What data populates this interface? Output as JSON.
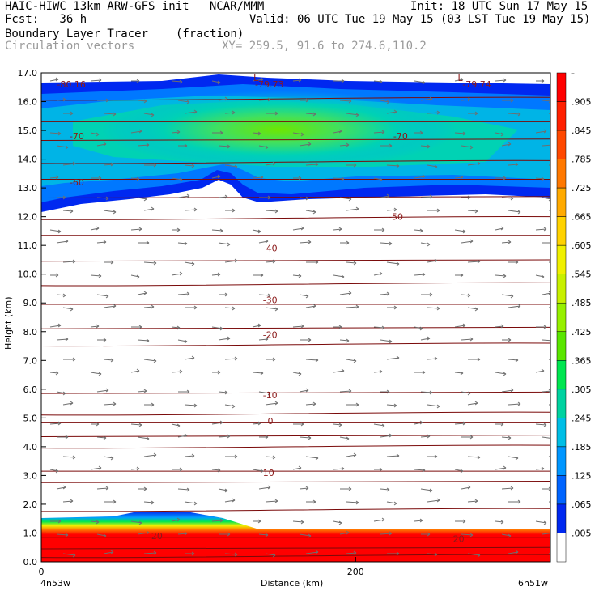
{
  "header": {
    "title_left": "HAIC-HIWC 13km ARW-GFS init   NCAR/MMM",
    "init": "Init: 18 UTC Sun 17 May 15",
    "fcst_label": "Fcst:   36 h",
    "valid": "Valid: 06 UTC Tue 19 May 15 (03 LST Tue 19 May 15)",
    "field": "Boundary Layer Tracer",
    "units": "(fraction)",
    "vectors": "Circulation vectors",
    "xy": "XY= 259.5, 91.6 to 274.6,110.2"
  },
  "chart_data": {
    "type": "heatmap",
    "ylabel": "Height (km)",
    "xlabel": "Distance (km)",
    "x_start_label": "4n53w",
    "x_end_label": "6n51w",
    "xlim": [
      0,
      324
    ],
    "ylim": [
      0,
      17
    ],
    "x_ticks": [
      "0",
      "200"
    ],
    "y_ticks": [
      "0.0",
      "1.0",
      "2.0",
      "3.0",
      "4.0",
      "5.0",
      "6.0",
      "7.0",
      "8.0",
      "9.0",
      "10.0",
      "11.0",
      "12.0",
      "13.0",
      "14.0",
      "15.0",
      "16.0",
      "17.0"
    ],
    "colorbar": {
      "labels": [
        "-",
        ".905",
        ".845",
        ".785",
        ".725",
        ".665",
        ".605",
        ".545",
        ".485",
        ".425",
        ".365",
        ".305",
        ".245",
        ".185",
        ".125",
        ".065",
        ".005"
      ],
      "colors": [
        "#ff0000",
        "#ff2000",
        "#ff4800",
        "#ff7800",
        "#ffaa00",
        "#ffd200",
        "#f0f000",
        "#c8f000",
        "#96f000",
        "#5ae600",
        "#00e650",
        "#00d2a0",
        "#00bee6",
        "#0096ff",
        "#0064ff",
        "#0028f0",
        "#ffffff"
      ]
    },
    "temperature_contour_labels": [
      {
        "text": "-80.16",
        "x": 10,
        "y": 16.6
      },
      {
        "text": "-79.73",
        "x": 136,
        "y": 16.6
      },
      {
        "text": "-79.74",
        "x": 268,
        "y": 16.6
      },
      {
        "text": "-70",
        "x": 18,
        "y": 14.8
      },
      {
        "text": "-70",
        "x": 224,
        "y": 14.8
      },
      {
        "text": "-60",
        "x": 18,
        "y": 13.2
      },
      {
        "text": "-50",
        "x": 221,
        "y": 12.0
      },
      {
        "text": "-40",
        "x": 141,
        "y": 10.9
      },
      {
        "text": "-30",
        "x": 141,
        "y": 9.1
      },
      {
        "text": "-20",
        "x": 141,
        "y": 7.9
      },
      {
        "text": "-10",
        "x": 141,
        "y": 5.8
      },
      {
        "text": "0",
        "x": 144,
        "y": 4.9
      },
      {
        "text": "10",
        "x": 141,
        "y": 3.1
      },
      {
        "text": "20",
        "x": 70,
        "y": 0.9
      },
      {
        "text": "20",
        "x": 262,
        "y": 0.8
      }
    ],
    "low_markers": [
      {
        "text": "L",
        "x": 135,
        "y": 16.95
      },
      {
        "text": "L",
        "x": 265,
        "y": 16.95
      }
    ]
  }
}
